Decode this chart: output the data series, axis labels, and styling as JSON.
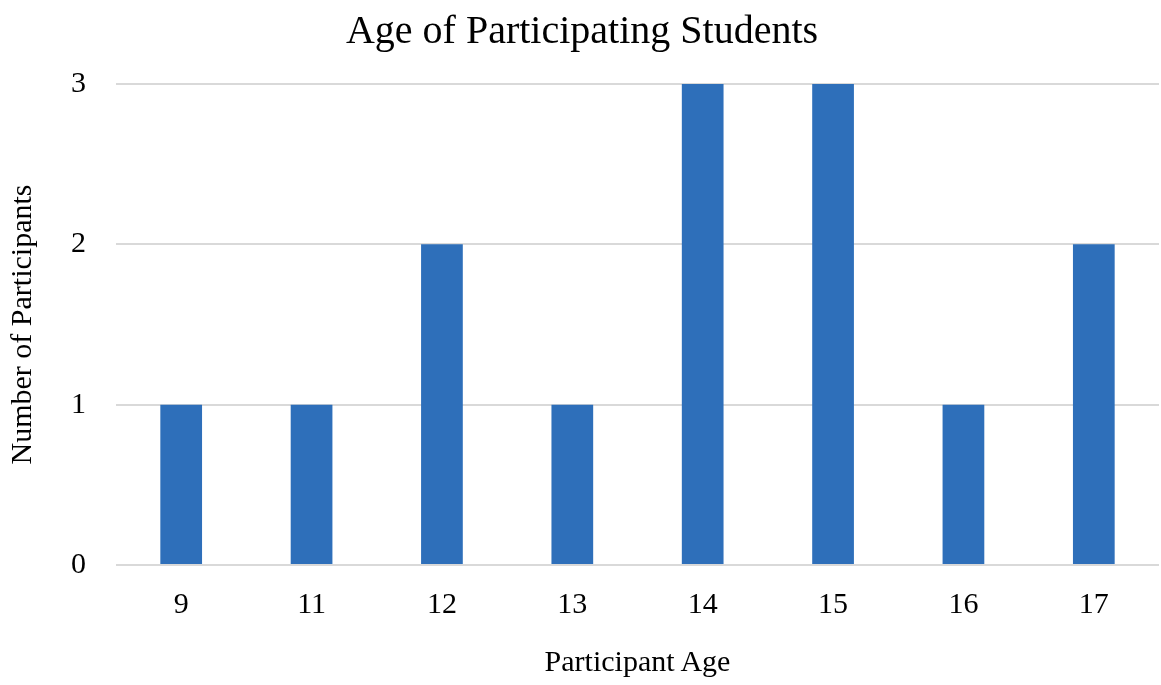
{
  "chart_data": {
    "type": "bar",
    "title": "Age of Participating Students",
    "xlabel": "Participant Age",
    "ylabel": "Number of Participants",
    "categories": [
      "9",
      "11",
      "12",
      "13",
      "14",
      "15",
      "16",
      "17"
    ],
    "values": [
      1,
      1,
      2,
      1,
      3,
      3,
      1,
      2
    ],
    "color": "#2e6fba",
    "ylim": [
      0,
      3
    ],
    "yticks": [
      0,
      1,
      2,
      3
    ],
    "grid": "y",
    "legend": false
  }
}
